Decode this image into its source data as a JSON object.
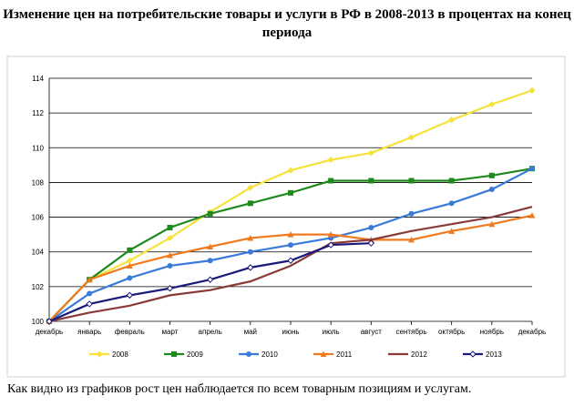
{
  "page": {
    "title": "Изменение цен на потребительские товары и услуги в РФ в 2008-2013 в процентах на конец периода",
    "caption": "Как видно из графиков рост цен наблюдается по всем товарным позициям и услугам."
  },
  "chart_data": {
    "type": "line",
    "title": "",
    "xlabel": "",
    "ylabel": "",
    "ylim": [
      100,
      114
    ],
    "yticks": [
      "100",
      "102",
      "104",
      "106",
      "108",
      "110",
      "112",
      "114"
    ],
    "categories": [
      "декабрь",
      "январь",
      "февраль",
      "март",
      "апрель",
      "май",
      "июнь",
      "июль",
      "август",
      "сентябрь",
      "октябрь",
      "ноябрь",
      "декабрь"
    ],
    "grid": true,
    "legend_position": "bottom",
    "series": [
      {
        "name": "2008",
        "color": "#f5e23a",
        "marker": "diamond",
        "values": [
          100,
          102.4,
          103.5,
          104.8,
          106.3,
          107.7,
          108.7,
          109.3,
          109.7,
          110.6,
          111.6,
          112.5,
          113.3
        ]
      },
      {
        "name": "2009",
        "color": "#1e8a1e",
        "marker": "square",
        "values": [
          100,
          102.4,
          104.1,
          105.4,
          106.2,
          106.8,
          107.4,
          108.1,
          108.1,
          108.1,
          108.1,
          108.4,
          108.8
        ]
      },
      {
        "name": "2010",
        "color": "#3a7ad8",
        "marker": "circle",
        "values": [
          100,
          101.6,
          102.5,
          103.2,
          103.5,
          104.0,
          104.4,
          104.8,
          105.4,
          106.2,
          106.8,
          107.6,
          108.8
        ]
      },
      {
        "name": "2011",
        "color": "#f07a1e",
        "marker": "triangle",
        "values": [
          100,
          102.4,
          103.2,
          103.8,
          104.3,
          104.8,
          105.0,
          105.0,
          104.7,
          104.7,
          105.2,
          105.6,
          106.1
        ]
      },
      {
        "name": "2012",
        "color": "#8b3a3a",
        "marker": "none",
        "values": [
          100,
          100.5,
          100.9,
          101.5,
          101.8,
          102.3,
          103.2,
          104.5,
          104.7,
          105.2,
          105.6,
          106.0,
          106.6
        ]
      },
      {
        "name": "2013",
        "color": "#1a1a7a",
        "marker": "hollow-diamond",
        "values": [
          100,
          101.0,
          101.5,
          101.9,
          102.4,
          103.1,
          103.5,
          104.4,
          104.5,
          null,
          null,
          null,
          null
        ]
      }
    ]
  }
}
